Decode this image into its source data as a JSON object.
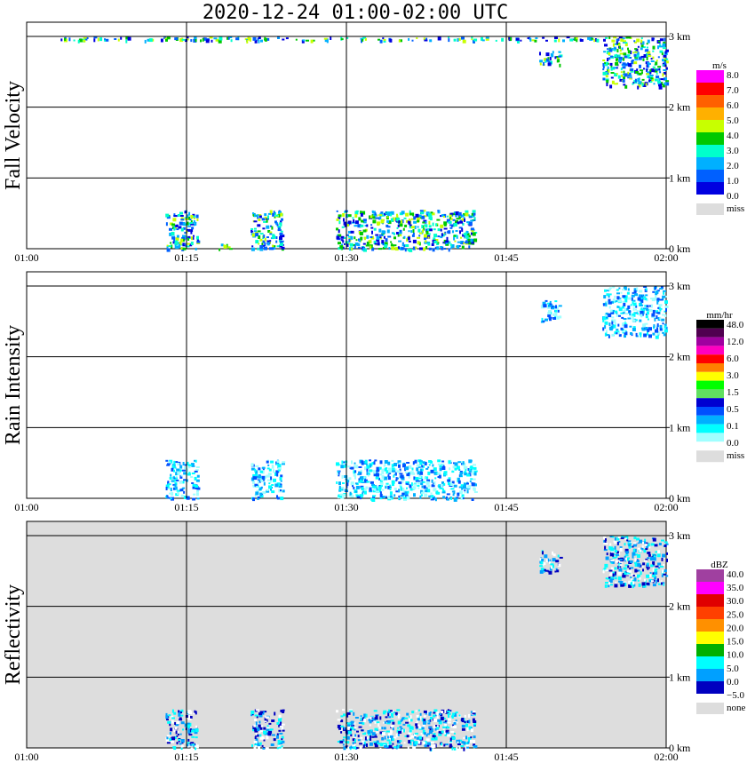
{
  "title": "2020-12-24   01:00-02:00 UTC",
  "x_ticks": [
    "01:00",
    "01:15",
    "01:30",
    "01:45",
    "02:00"
  ],
  "y_ticks": [
    "0 km",
    "1 km",
    "2 km",
    "3 km"
  ],
  "panels": [
    {
      "ylabel": "Fall Velocity",
      "background": "#ffffff",
      "colorbar": {
        "unit": "m/s",
        "labels": [
          "8.0",
          "7.0",
          "6.0",
          "5.0",
          "4.0",
          "3.0",
          "2.0",
          "1.0",
          "0.0"
        ],
        "colors": [
          "#ff00ff",
          "#ff0000",
          "#ff6000",
          "#ffb000",
          "#c8ff00",
          "#00c800",
          "#00ffcc",
          "#00b0ff",
          "#0060ff",
          "#0000e0"
        ],
        "miss_label": "miss",
        "miss_color": "#dddddd"
      }
    },
    {
      "ylabel": "Rain Intensity",
      "background": "#ffffff",
      "colorbar": {
        "unit": "mm/hr",
        "labels": [
          "48.0",
          "12.0",
          "6.0",
          "3.0",
          "1.5",
          "0.5",
          "0.1",
          "0.0"
        ],
        "colors": [
          "#000000",
          "#500050",
          "#a000a0",
          "#ff00c0",
          "#ff0000",
          "#ff8000",
          "#ffff00",
          "#00ff00",
          "#60e060",
          "#0000d0",
          "#0050ff",
          "#00b0ff",
          "#00ffff",
          "#a0ffff"
        ],
        "miss_label": "miss",
        "miss_color": "#dddddd"
      }
    },
    {
      "ylabel": "Reflectivity",
      "background": "#dddddd",
      "colorbar": {
        "unit": "dBZ",
        "labels": [
          "40.0",
          "35.0",
          "30.0",
          "25.0",
          "20.0",
          "15.0",
          "10.0",
          "5.0",
          "0.0",
          "−5.0"
        ],
        "colors": [
          "#a040a0",
          "#ff00ff",
          "#e00000",
          "#ff4000",
          "#ff9000",
          "#ffff00",
          "#00b000",
          "#00ffff",
          "#00a0ff",
          "#0000c0"
        ],
        "miss_label": "none",
        "miss_color": "#dddddd"
      }
    }
  ],
  "chart_data": [
    {
      "type": "heatmap",
      "ylabel": "Fall Velocity",
      "x_range": [
        "01:00",
        "02:00"
      ],
      "ylim_km": [
        0,
        3.2
      ],
      "unit": "m/s",
      "echo_regions": [
        {
          "x": [
            "01:13",
            "01:16"
          ],
          "y_km": [
            0,
            0.55
          ],
          "value": "0-4"
        },
        {
          "x": [
            "01:18",
            "01:19"
          ],
          "y_km": [
            0,
            0.1
          ],
          "value": "7-8"
        },
        {
          "x": [
            "01:21",
            "01:24"
          ],
          "y_km": [
            0,
            0.55
          ],
          "value": "0-4"
        },
        {
          "x": [
            "01:29",
            "01:42"
          ],
          "y_km": [
            0,
            0.55
          ],
          "value": "0-4"
        },
        {
          "x": [
            "01:48",
            "01:50"
          ],
          "y_km": [
            2.6,
            2.8
          ],
          "value": "0-2"
        },
        {
          "x": [
            "01:54",
            "02:00"
          ],
          "y_km": [
            2.3,
            3.0
          ],
          "value": "0-2"
        },
        {
          "x": [
            "01:03",
            "01:55"
          ],
          "y_km": [
            2.95,
            3.0
          ],
          "value": "1-5"
        }
      ]
    },
    {
      "type": "heatmap",
      "ylabel": "Rain Intensity",
      "x_range": [
        "01:00",
        "02:00"
      ],
      "ylim_km": [
        0,
        3.2
      ],
      "unit": "mm/hr",
      "echo_regions": [
        {
          "x": [
            "01:13",
            "01:16"
          ],
          "y_km": [
            0,
            0.55
          ],
          "value": "0.0-0.1"
        },
        {
          "x": [
            "01:21",
            "01:24"
          ],
          "y_km": [
            0,
            0.55
          ],
          "value": "0.0-0.1"
        },
        {
          "x": [
            "01:29",
            "01:42"
          ],
          "y_km": [
            0,
            0.55
          ],
          "value": "0.0-0.1"
        },
        {
          "x": [
            "01:48",
            "01:50"
          ],
          "y_km": [
            2.5,
            2.8
          ],
          "value": "0.1-0.5"
        },
        {
          "x": [
            "01:54",
            "02:00"
          ],
          "y_km": [
            2.3,
            3.0
          ],
          "value": "0.1-0.5"
        }
      ]
    },
    {
      "type": "heatmap",
      "ylabel": "Reflectivity",
      "x_range": [
        "01:00",
        "02:00"
      ],
      "ylim_km": [
        0,
        3.2
      ],
      "unit": "dBZ",
      "echo_regions": [
        {
          "x": [
            "01:13",
            "01:16"
          ],
          "y_km": [
            0,
            0.55
          ],
          "value": "-5-5"
        },
        {
          "x": [
            "01:21",
            "01:24"
          ],
          "y_km": [
            0,
            0.55
          ],
          "value": "-5-5"
        },
        {
          "x": [
            "01:29",
            "01:42"
          ],
          "y_km": [
            0,
            0.55
          ],
          "value": "-5-5"
        },
        {
          "x": [
            "01:48",
            "01:50"
          ],
          "y_km": [
            2.5,
            2.8
          ],
          "value": "5-10"
        },
        {
          "x": [
            "01:54",
            "02:00"
          ],
          "y_km": [
            2.3,
            3.0
          ],
          "value": "5-10"
        }
      ]
    }
  ]
}
